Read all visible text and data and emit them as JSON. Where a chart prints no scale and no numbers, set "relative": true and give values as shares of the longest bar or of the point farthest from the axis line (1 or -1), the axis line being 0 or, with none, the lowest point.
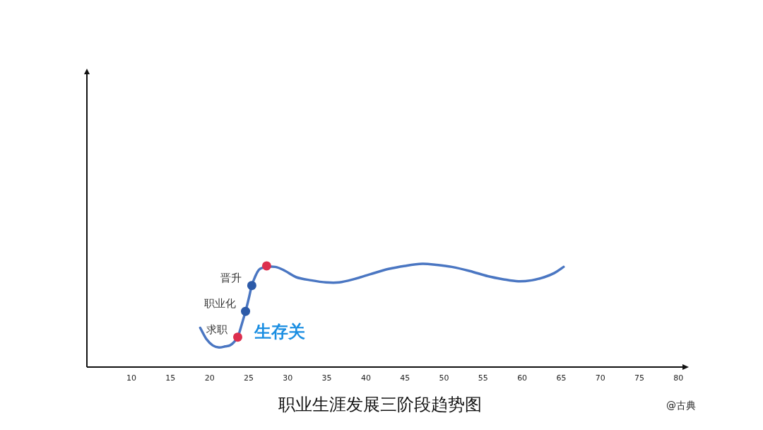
{
  "chart_data": {
    "type": "line",
    "title": "职业生涯发展三阶段趋势图",
    "relative": true,
    "xlim": [
      4.3,
      80.6
    ],
    "xticks": [
      10,
      15,
      20,
      25,
      30,
      35,
      40,
      45,
      50,
      55,
      60,
      65,
      70,
      75,
      80
    ],
    "grid": false,
    "legend": false,
    "series": [
      {
        "type": "line",
        "color": "#4a76c2",
        "x": [
          18.8,
          19.6,
          20.4,
          21.2,
          22.0,
          22.6,
          23.1,
          23.6,
          24.1,
          24.6,
          25.0,
          25.4,
          25.8,
          26.2,
          26.7,
          28.4,
          29.7,
          31.1,
          33.0,
          34.9,
          36.6,
          38.4,
          40.6,
          42.9,
          45.0,
          47.2,
          49.0,
          51.0,
          53.3,
          55.6,
          57.6,
          59.5,
          61.2,
          62.8,
          64.1,
          65.3
        ],
        "values": [
          0.38,
          0.27,
          0.21,
          0.19,
          0.2,
          0.21,
          0.24,
          0.29,
          0.41,
          0.54,
          0.66,
          0.79,
          0.87,
          0.93,
          0.96,
          0.97,
          0.93,
          0.87,
          0.84,
          0.82,
          0.82,
          0.85,
          0.9,
          0.95,
          0.98,
          1.0,
          0.99,
          0.97,
          0.93,
          0.88,
          0.85,
          0.83,
          0.84,
          0.87,
          0.91,
          0.97
        ]
      },
      {
        "type": "scatter",
        "marker": "circle",
        "x": [
          23.6,
          24.6,
          25.4,
          27.3
        ],
        "values": [
          0.29,
          0.54,
          0.79,
          0.98
        ],
        "colors": [
          "#dc2f4e",
          "#2c5aa8",
          "#2c5aa8",
          "#dc2f4e"
        ]
      }
    ],
    "annotations": [
      {
        "text": "求职",
        "x": 23.6,
        "y": 0.29
      },
      {
        "text": "职业化",
        "x": 24.6,
        "y": 0.54
      },
      {
        "text": "晋升",
        "x": 25.4,
        "y": 0.79
      },
      "生存关",
      "@古典"
    ]
  }
}
